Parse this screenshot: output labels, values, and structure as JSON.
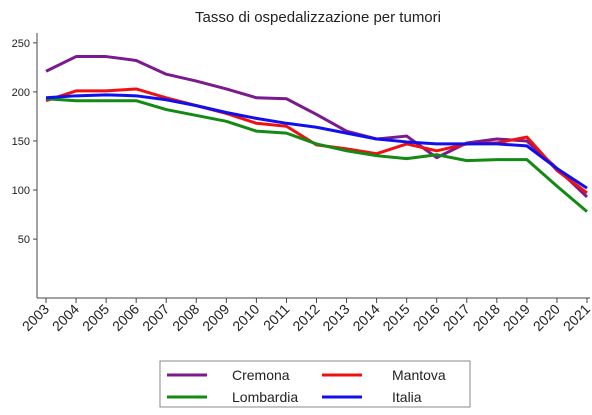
{
  "chart_data": {
    "type": "line",
    "title": "Tasso di ospedalizzazione per tumori",
    "x": [
      2003,
      2004,
      2005,
      2006,
      2007,
      2008,
      2009,
      2010,
      2011,
      2012,
      2013,
      2014,
      2015,
      2016,
      2017,
      2018,
      2019,
      2020,
      2021
    ],
    "series": [
      {
        "name": "Cremona",
        "color": "#7b1a8f",
        "values": [
          221,
          236,
          236,
          232,
          218,
          211,
          203,
          194,
          193,
          177,
          160,
          152,
          155,
          133,
          148,
          152,
          150,
          122,
          93
        ]
      },
      {
        "name": "Mantova",
        "color": "#ee1111",
        "values": [
          191,
          201,
          201,
          203,
          194,
          186,
          178,
          168,
          165,
          146,
          142,
          137,
          147,
          140,
          147,
          148,
          154,
          120,
          97
        ]
      },
      {
        "name": "Lombardia",
        "color": "#138a13",
        "values": [
          193,
          191,
          191,
          191,
          182,
          176,
          170,
          160,
          158,
          147,
          140,
          135,
          132,
          136,
          130,
          131,
          131,
          104,
          78
        ]
      },
      {
        "name": "Italia",
        "color": "#1010ee",
        "values": [
          194,
          196,
          197,
          196,
          192,
          186,
          179,
          173,
          168,
          164,
          158,
          152,
          149,
          147,
          147,
          147,
          145,
          122,
          102
        ]
      }
    ],
    "xlim": [
      2002.7,
      2021.1
    ],
    "xticks": [
      2003,
      2004,
      2005,
      2006,
      2007,
      2008,
      2009,
      2010,
      2011,
      2012,
      2013,
      2014,
      2015,
      2016,
      2017,
      2018,
      2019,
      2020,
      2021
    ],
    "ylim": [
      -10,
      260
    ],
    "yticks": [
      50,
      100,
      150,
      200,
      250
    ],
    "grid": false,
    "legend": "bottom"
  }
}
